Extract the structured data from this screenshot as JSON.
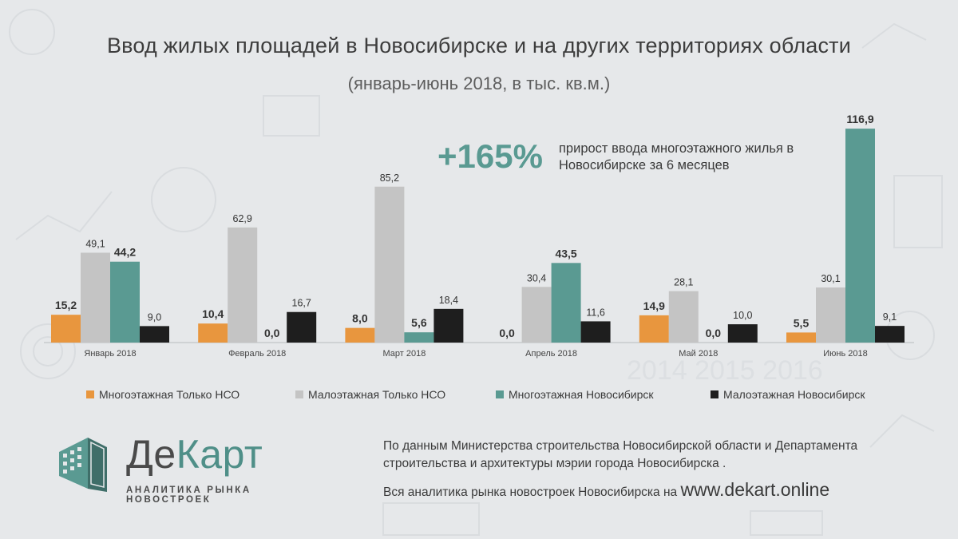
{
  "header": {
    "title": "Ввод жилых площадей в Новосибирске и на других территориях области",
    "subtitle": "(январь-июнь 2018, в тыс. кв.м.)"
  },
  "highlight": {
    "value": "+165%",
    "text": "прирост ввода многоэтажного жилья в Новосибирске за 6 месяцев"
  },
  "chart_data": {
    "type": "bar",
    "categories": [
      "Январь 2018",
      "Февраль 2018",
      "Март 2018",
      "Апрель 2018",
      "Май 2018",
      "Июнь 2018"
    ],
    "series": [
      {
        "name": "Многоэтажная Только НСО",
        "color": "#e8963e",
        "values": [
          15.2,
          10.4,
          8.0,
          0.0,
          14.9,
          5.5
        ],
        "labels": [
          "15,2",
          "10,4",
          "8,0",
          "0,0",
          "14,9",
          "5,5"
        ],
        "bold_labels": true
      },
      {
        "name": "Малоэтажная Только НСО",
        "color": "#c4c4c4",
        "values": [
          49.1,
          62.9,
          85.2,
          30.4,
          28.1,
          30.1
        ],
        "labels": [
          "49,1",
          "62,9",
          "85,2",
          "30,4",
          "28,1",
          "30,1"
        ],
        "bold_labels": false
      },
      {
        "name": "Многоэтажная Новосибирск",
        "color": "#5a9a92",
        "values": [
          44.2,
          0.0,
          5.6,
          43.5,
          0.0,
          116.9
        ],
        "labels": [
          "44,2",
          "0,0",
          "5,6",
          "43,5",
          "0,0",
          "116,9"
        ],
        "bold_labels": true
      },
      {
        "name": "Малоэтажная Новосибирск",
        "color": "#1e1e1e",
        "values": [
          9.0,
          16.7,
          18.4,
          11.6,
          10.0,
          9.1
        ],
        "labels": [
          "9,0",
          "16,7",
          "18,4",
          "11,6",
          "10,0",
          "9,1"
        ],
        "bold_labels": false
      }
    ],
    "title": "Ввод жилых площадей в Новосибирске и на других территориях области",
    "ylabel": "тыс. кв.м.",
    "ylim": [
      0,
      120
    ],
    "legend_position": "bottom",
    "grid": false
  },
  "logo": {
    "name_part1": "Де",
    "name_part2": "Карт",
    "tagline": "АНАЛИТИКА РЫНКА НОВОСТРОЕК"
  },
  "footer": {
    "source_text": "По данным Министерства строительства Новосибирской области и Департамента строительства и архитектуры мэрии города Новосибирска .",
    "site_prefix": "Вся аналитика рынка новостроек Новосибирска на",
    "site_url": "www.dekart.online"
  }
}
